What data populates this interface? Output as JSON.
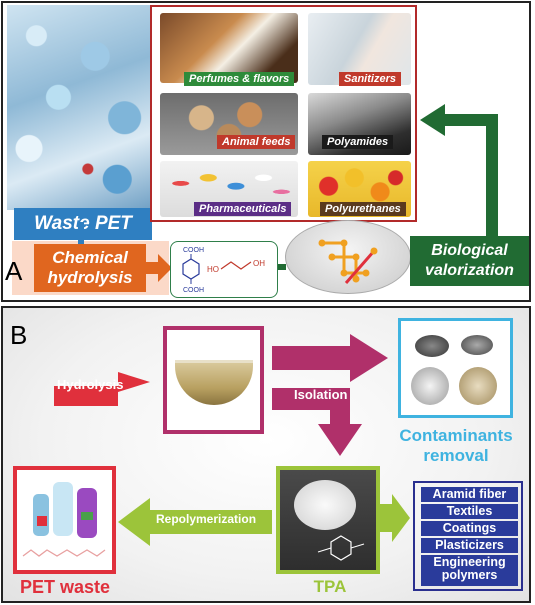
{
  "panel_a": {
    "label": "A",
    "waste_pet_label": "Waste PET",
    "chemical_hydrolysis_label": "Chemical hydrolysis",
    "biological_valorization_label": "Biological valorization",
    "products": [
      {
        "label": "Perfumes & flavors",
        "color": "#2e8b3a"
      },
      {
        "label": "Sanitizers",
        "color": "#c0392b"
      },
      {
        "label": "Animal feeds",
        "color": "#c0392b"
      },
      {
        "label": "Polyamides",
        "color": "#1a1a1a"
      },
      {
        "label": "Pharmaceuticals",
        "color": "#5b2d86"
      },
      {
        "label": "Polyurethanes",
        "color": "#5a3a1e"
      }
    ],
    "molecules": {
      "cooh_top": "COOH",
      "cooh_bottom": "COOH",
      "oh_left": "HO",
      "oh_right": "OH"
    },
    "colors": {
      "waste": "#2f7fc1",
      "chemical": "#e0661f",
      "bio": "#216b33",
      "frame": "#b22a2a"
    }
  },
  "panel_b": {
    "label": "B",
    "hydrolysis_label": "Hydrolysis",
    "isolation_label": "Isolation",
    "repolymerization_label": "Repolymerization",
    "contaminants_label": "Contaminants removal",
    "pet_waste_label": "PET waste",
    "tpa_label": "TPA",
    "applications": [
      "Aramid fiber",
      "Textiles",
      "Coatings",
      "Plasticizers",
      "Engineering polymers"
    ],
    "colors": {
      "hydrolysis": "#e0303c",
      "isolation": "#b0306a",
      "contaminants": "#3fb3e0",
      "tpa": "#9cc43a",
      "apps": "#2a3b9b"
    }
  }
}
